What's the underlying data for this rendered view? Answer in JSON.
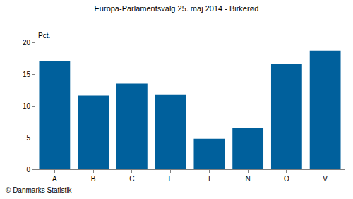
{
  "chart_data": {
    "type": "bar",
    "title": "Europa-Parlamentsvalg 25. maj 2014 - Birkerød",
    "ylabel": "Pct.",
    "categories": [
      "A",
      "B",
      "C",
      "F",
      "I",
      "N",
      "O",
      "V"
    ],
    "values": [
      17.1,
      11.6,
      13.5,
      11.8,
      4.8,
      6.5,
      16.6,
      18.7
    ],
    "color": "#00609c",
    "ylim": [
      0,
      20
    ],
    "yticks": [
      0,
      5,
      10,
      15,
      20
    ],
    "grid": false,
    "annotations": [
      "© Danmarks Statistik"
    ]
  }
}
